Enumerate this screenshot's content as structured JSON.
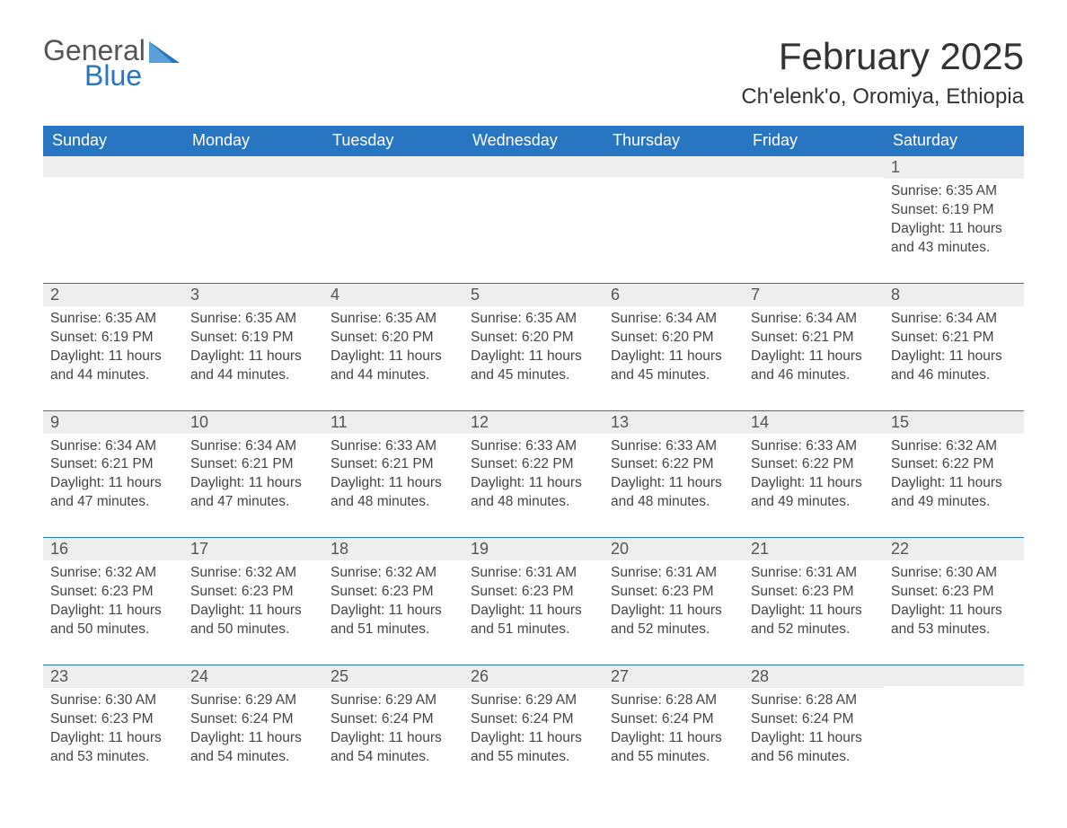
{
  "logo": {
    "word1": "General",
    "word2": "Blue"
  },
  "title": "February 2025",
  "location": "Ch'elenk'o, Oromiya, Ethiopia",
  "colors": {
    "header_bg": "#2876c2",
    "header_fg": "#ffffff",
    "daynum_bg": "#eeeeee",
    "row_border": "#2876c2",
    "text": "#333333",
    "logo_gray": "#555555",
    "logo_blue": "#2876c2"
  },
  "weekdays": [
    "Sunday",
    "Monday",
    "Tuesday",
    "Wednesday",
    "Thursday",
    "Friday",
    "Saturday"
  ],
  "weeks": [
    [
      null,
      null,
      null,
      null,
      null,
      null,
      {
        "n": "1",
        "sunrise": "6:35 AM",
        "sunset": "6:19 PM",
        "daylight": "11 hours and 43 minutes."
      }
    ],
    [
      {
        "n": "2",
        "sunrise": "6:35 AM",
        "sunset": "6:19 PM",
        "daylight": "11 hours and 44 minutes."
      },
      {
        "n": "3",
        "sunrise": "6:35 AM",
        "sunset": "6:19 PM",
        "daylight": "11 hours and 44 minutes."
      },
      {
        "n": "4",
        "sunrise": "6:35 AM",
        "sunset": "6:20 PM",
        "daylight": "11 hours and 44 minutes."
      },
      {
        "n": "5",
        "sunrise": "6:35 AM",
        "sunset": "6:20 PM",
        "daylight": "11 hours and 45 minutes."
      },
      {
        "n": "6",
        "sunrise": "6:34 AM",
        "sunset": "6:20 PM",
        "daylight": "11 hours and 45 minutes."
      },
      {
        "n": "7",
        "sunrise": "6:34 AM",
        "sunset": "6:21 PM",
        "daylight": "11 hours and 46 minutes."
      },
      {
        "n": "8",
        "sunrise": "6:34 AM",
        "sunset": "6:21 PM",
        "daylight": "11 hours and 46 minutes."
      }
    ],
    [
      {
        "n": "9",
        "sunrise": "6:34 AM",
        "sunset": "6:21 PM",
        "daylight": "11 hours and 47 minutes."
      },
      {
        "n": "10",
        "sunrise": "6:34 AM",
        "sunset": "6:21 PM",
        "daylight": "11 hours and 47 minutes."
      },
      {
        "n": "11",
        "sunrise": "6:33 AM",
        "sunset": "6:21 PM",
        "daylight": "11 hours and 48 minutes."
      },
      {
        "n": "12",
        "sunrise": "6:33 AM",
        "sunset": "6:22 PM",
        "daylight": "11 hours and 48 minutes."
      },
      {
        "n": "13",
        "sunrise": "6:33 AM",
        "sunset": "6:22 PM",
        "daylight": "11 hours and 48 minutes."
      },
      {
        "n": "14",
        "sunrise": "6:33 AM",
        "sunset": "6:22 PM",
        "daylight": "11 hours and 49 minutes."
      },
      {
        "n": "15",
        "sunrise": "6:32 AM",
        "sunset": "6:22 PM",
        "daylight": "11 hours and 49 minutes."
      }
    ],
    [
      {
        "n": "16",
        "sunrise": "6:32 AM",
        "sunset": "6:23 PM",
        "daylight": "11 hours and 50 minutes."
      },
      {
        "n": "17",
        "sunrise": "6:32 AM",
        "sunset": "6:23 PM",
        "daylight": "11 hours and 50 minutes."
      },
      {
        "n": "18",
        "sunrise": "6:32 AM",
        "sunset": "6:23 PM",
        "daylight": "11 hours and 51 minutes."
      },
      {
        "n": "19",
        "sunrise": "6:31 AM",
        "sunset": "6:23 PM",
        "daylight": "11 hours and 51 minutes."
      },
      {
        "n": "20",
        "sunrise": "6:31 AM",
        "sunset": "6:23 PM",
        "daylight": "11 hours and 52 minutes."
      },
      {
        "n": "21",
        "sunrise": "6:31 AM",
        "sunset": "6:23 PM",
        "daylight": "11 hours and 52 minutes."
      },
      {
        "n": "22",
        "sunrise": "6:30 AM",
        "sunset": "6:23 PM",
        "daylight": "11 hours and 53 minutes."
      }
    ],
    [
      {
        "n": "23",
        "sunrise": "6:30 AM",
        "sunset": "6:23 PM",
        "daylight": "11 hours and 53 minutes."
      },
      {
        "n": "24",
        "sunrise": "6:29 AM",
        "sunset": "6:24 PM",
        "daylight": "11 hours and 54 minutes."
      },
      {
        "n": "25",
        "sunrise": "6:29 AM",
        "sunset": "6:24 PM",
        "daylight": "11 hours and 54 minutes."
      },
      {
        "n": "26",
        "sunrise": "6:29 AM",
        "sunset": "6:24 PM",
        "daylight": "11 hours and 55 minutes."
      },
      {
        "n": "27",
        "sunrise": "6:28 AM",
        "sunset": "6:24 PM",
        "daylight": "11 hours and 55 minutes."
      },
      {
        "n": "28",
        "sunrise": "6:28 AM",
        "sunset": "6:24 PM",
        "daylight": "11 hours and 56 minutes."
      },
      null
    ]
  ],
  "labels": {
    "sunrise": "Sunrise:",
    "sunset": "Sunset:",
    "daylight": "Daylight:"
  }
}
